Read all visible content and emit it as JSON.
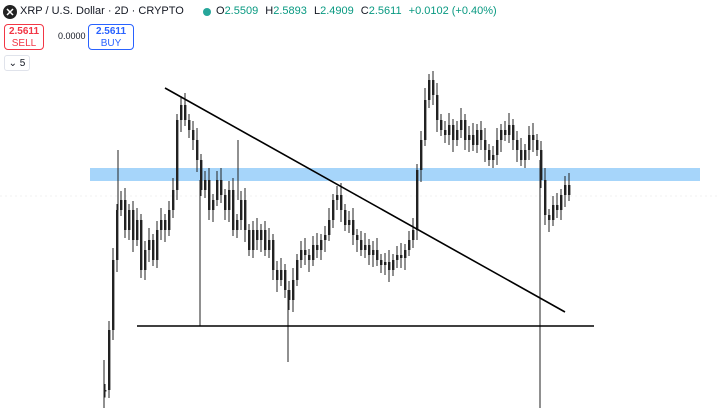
{
  "header": {
    "title": "XRP / U.S. Dollar · 2D · CRYPTO",
    "ohlc": [
      {
        "label": "O",
        "value": "2.5509"
      },
      {
        "label": "H",
        "value": "2.5893"
      },
      {
        "label": "L",
        "value": "2.4909"
      },
      {
        "label": "C",
        "value": "2.5611"
      }
    ],
    "change": "+0.0102 (+0.40%)"
  },
  "trade": {
    "sell_price": "2.5611",
    "sell_label": "SELL",
    "spread": "0.0000",
    "buy_price": "2.5611",
    "buy_label": "BUY"
  },
  "toolbar": {
    "collapse_count": "5"
  }
}
